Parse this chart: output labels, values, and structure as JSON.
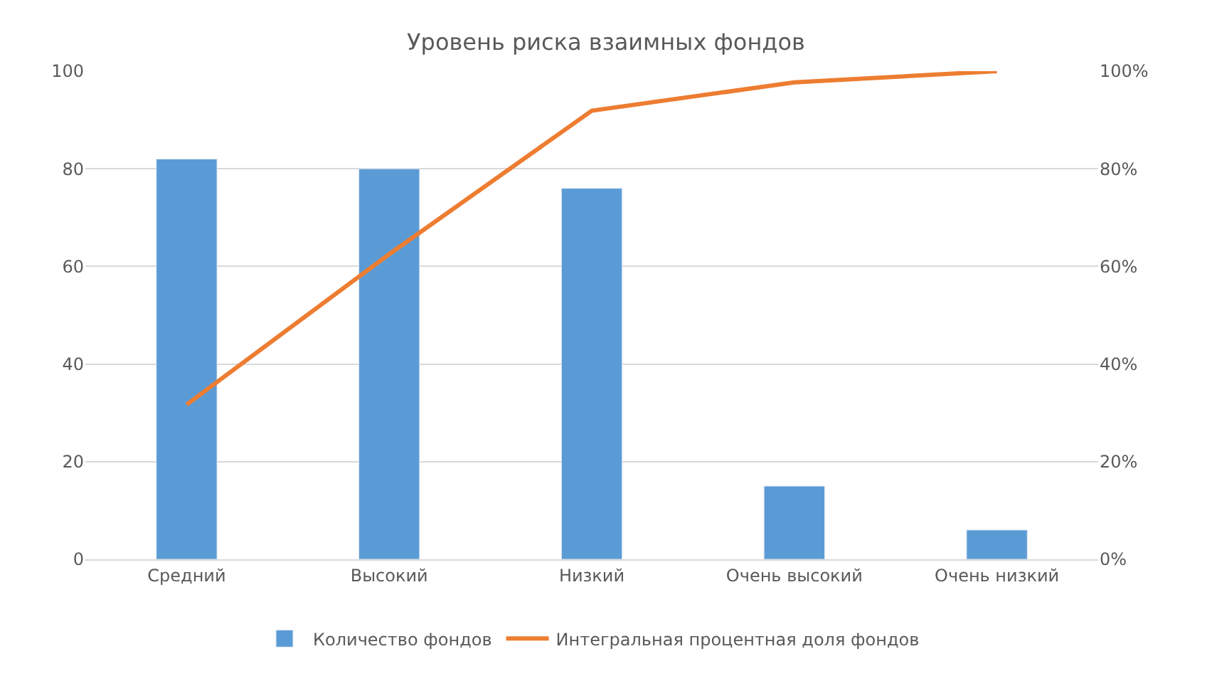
{
  "chart_data": {
    "type": "bar",
    "title": "Уровень риска взаимных фондов",
    "categories": [
      "Средний",
      "Высокий",
      "Низкий",
      "Очень высокий",
      "Очень низкий"
    ],
    "series": [
      {
        "name": "Количество фондов",
        "color": "#5b9bd5",
        "values": [
          82,
          80,
          76,
          15,
          6
        ]
      },
      {
        "name": "Интегральная процентная доля фондов",
        "type": "line",
        "axis": "y2",
        "color": "#ed7d31",
        "values": [
          31.7,
          62.5,
          91.9,
          97.7,
          100
        ]
      }
    ],
    "ylim": [
      0,
      100
    ],
    "yticks": [
      0,
      20,
      40,
      60,
      80,
      100
    ],
    "y2lim": [
      0,
      100
    ],
    "y2ticks": [
      {
        "value": 0,
        "label": "0%"
      },
      {
        "value": 20,
        "label": "20%"
      },
      {
        "value": 40,
        "label": "40%"
      },
      {
        "value": 60,
        "label": "60%"
      },
      {
        "value": 80,
        "label": "80%"
      },
      {
        "value": 100,
        "label": "100%"
      }
    ],
    "grid": "y",
    "legend": "bottom",
    "marker": "none",
    "line_style": "solid"
  }
}
